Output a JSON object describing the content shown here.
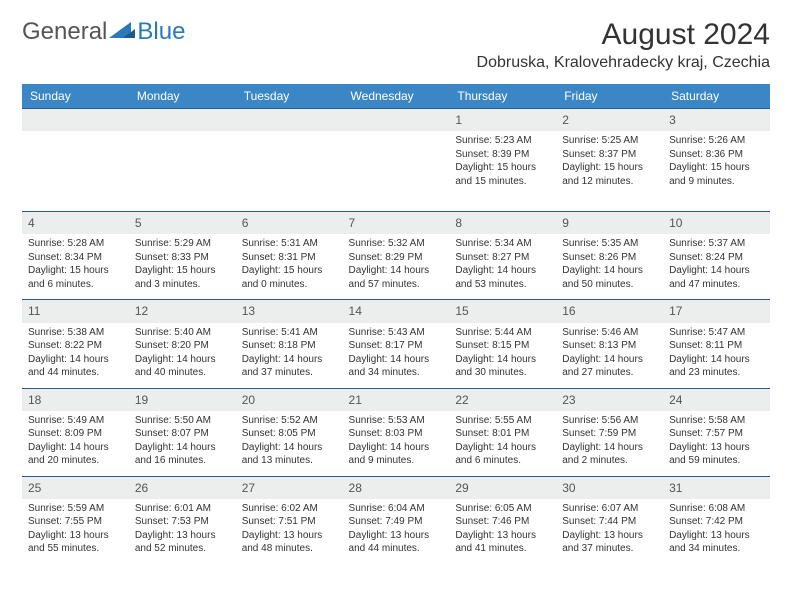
{
  "brand": {
    "name1": "General",
    "name2": "Blue"
  },
  "title": "August 2024",
  "location": "Dobruska, Kralovehradecky kraj, Czechia",
  "day_headers": [
    "Sunday",
    "Monday",
    "Tuesday",
    "Wednesday",
    "Thursday",
    "Friday",
    "Saturday"
  ],
  "colors": {
    "header_bg": "#3b86c4",
    "header_text": "#ffffff",
    "row_border": "#2a5a8a",
    "daynum_bg": "#eceded",
    "brand_gray": "#555555",
    "brand_blue": "#2a7ab8"
  },
  "weeks": [
    [
      null,
      null,
      null,
      null,
      {
        "n": "1",
        "sr": "5:23 AM",
        "ss": "8:39 PM",
        "dl": "15 hours and 15 minutes."
      },
      {
        "n": "2",
        "sr": "5:25 AM",
        "ss": "8:37 PM",
        "dl": "15 hours and 12 minutes."
      },
      {
        "n": "3",
        "sr": "5:26 AM",
        "ss": "8:36 PM",
        "dl": "15 hours and 9 minutes."
      }
    ],
    [
      {
        "n": "4",
        "sr": "5:28 AM",
        "ss": "8:34 PM",
        "dl": "15 hours and 6 minutes."
      },
      {
        "n": "5",
        "sr": "5:29 AM",
        "ss": "8:33 PM",
        "dl": "15 hours and 3 minutes."
      },
      {
        "n": "6",
        "sr": "5:31 AM",
        "ss": "8:31 PM",
        "dl": "15 hours and 0 minutes."
      },
      {
        "n": "7",
        "sr": "5:32 AM",
        "ss": "8:29 PM",
        "dl": "14 hours and 57 minutes."
      },
      {
        "n": "8",
        "sr": "5:34 AM",
        "ss": "8:27 PM",
        "dl": "14 hours and 53 minutes."
      },
      {
        "n": "9",
        "sr": "5:35 AM",
        "ss": "8:26 PM",
        "dl": "14 hours and 50 minutes."
      },
      {
        "n": "10",
        "sr": "5:37 AM",
        "ss": "8:24 PM",
        "dl": "14 hours and 47 minutes."
      }
    ],
    [
      {
        "n": "11",
        "sr": "5:38 AM",
        "ss": "8:22 PM",
        "dl": "14 hours and 44 minutes."
      },
      {
        "n": "12",
        "sr": "5:40 AM",
        "ss": "8:20 PM",
        "dl": "14 hours and 40 minutes."
      },
      {
        "n": "13",
        "sr": "5:41 AM",
        "ss": "8:18 PM",
        "dl": "14 hours and 37 minutes."
      },
      {
        "n": "14",
        "sr": "5:43 AM",
        "ss": "8:17 PM",
        "dl": "14 hours and 34 minutes."
      },
      {
        "n": "15",
        "sr": "5:44 AM",
        "ss": "8:15 PM",
        "dl": "14 hours and 30 minutes."
      },
      {
        "n": "16",
        "sr": "5:46 AM",
        "ss": "8:13 PM",
        "dl": "14 hours and 27 minutes."
      },
      {
        "n": "17",
        "sr": "5:47 AM",
        "ss": "8:11 PM",
        "dl": "14 hours and 23 minutes."
      }
    ],
    [
      {
        "n": "18",
        "sr": "5:49 AM",
        "ss": "8:09 PM",
        "dl": "14 hours and 20 minutes."
      },
      {
        "n": "19",
        "sr": "5:50 AM",
        "ss": "8:07 PM",
        "dl": "14 hours and 16 minutes."
      },
      {
        "n": "20",
        "sr": "5:52 AM",
        "ss": "8:05 PM",
        "dl": "14 hours and 13 minutes."
      },
      {
        "n": "21",
        "sr": "5:53 AM",
        "ss": "8:03 PM",
        "dl": "14 hours and 9 minutes."
      },
      {
        "n": "22",
        "sr": "5:55 AM",
        "ss": "8:01 PM",
        "dl": "14 hours and 6 minutes."
      },
      {
        "n": "23",
        "sr": "5:56 AM",
        "ss": "7:59 PM",
        "dl": "14 hours and 2 minutes."
      },
      {
        "n": "24",
        "sr": "5:58 AM",
        "ss": "7:57 PM",
        "dl": "13 hours and 59 minutes."
      }
    ],
    [
      {
        "n": "25",
        "sr": "5:59 AM",
        "ss": "7:55 PM",
        "dl": "13 hours and 55 minutes."
      },
      {
        "n": "26",
        "sr": "6:01 AM",
        "ss": "7:53 PM",
        "dl": "13 hours and 52 minutes."
      },
      {
        "n": "27",
        "sr": "6:02 AM",
        "ss": "7:51 PM",
        "dl": "13 hours and 48 minutes."
      },
      {
        "n": "28",
        "sr": "6:04 AM",
        "ss": "7:49 PM",
        "dl": "13 hours and 44 minutes."
      },
      {
        "n": "29",
        "sr": "6:05 AM",
        "ss": "7:46 PM",
        "dl": "13 hours and 41 minutes."
      },
      {
        "n": "30",
        "sr": "6:07 AM",
        "ss": "7:44 PM",
        "dl": "13 hours and 37 minutes."
      },
      {
        "n": "31",
        "sr": "6:08 AM",
        "ss": "7:42 PM",
        "dl": "13 hours and 34 minutes."
      }
    ]
  ]
}
